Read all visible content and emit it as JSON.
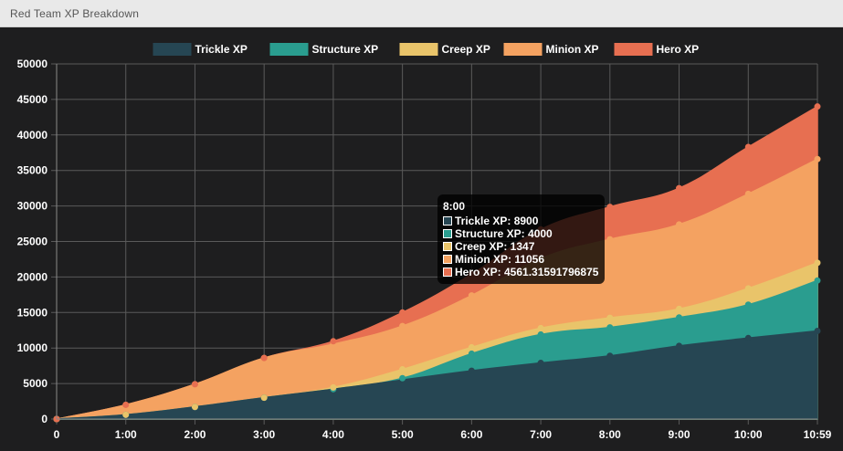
{
  "window": {
    "title": "Red Team XP Breakdown"
  },
  "chart_data": {
    "type": "area",
    "stacked": true,
    "x": [
      "0",
      "1:00",
      "2:00",
      "3:00",
      "4:00",
      "5:00",
      "6:00",
      "7:00",
      "8:00",
      "9:00",
      "10:00",
      "10:59"
    ],
    "ylim": [
      0,
      50000
    ],
    "yticks": [
      0,
      5000,
      10000,
      15000,
      20000,
      25000,
      30000,
      35000,
      40000,
      45000,
      50000
    ],
    "grid": true,
    "legend_position": "top",
    "series": [
      {
        "name": "Trickle XP",
        "color": "#264653",
        "values": [
          0,
          600,
          1700,
          3000,
          4200,
          5500,
          6800,
          7900,
          8900,
          10300,
          11400,
          12400
        ]
      },
      {
        "name": "Structure XP",
        "color": "#2a9d8f",
        "values": [
          0,
          0,
          0,
          0,
          0,
          250,
          2400,
          4000,
          4000,
          4000,
          4700,
          7100
        ]
      },
      {
        "name": "Creep XP",
        "color": "#e9c46a",
        "values": [
          0,
          0,
          0,
          0,
          250,
          1250,
          900,
          900,
          1347,
          1200,
          2300,
          2500
        ]
      },
      {
        "name": "Minion XP",
        "color": "#f4a261",
        "values": [
          0,
          1400,
          3200,
          5600,
          6100,
          6100,
          7300,
          9800,
          11056,
          11900,
          13300,
          14600
        ]
      },
      {
        "name": "Hero XP",
        "color": "#e76f51",
        "values": [
          0,
          0,
          0,
          0,
          400,
          1900,
          3000,
          4100,
          4561.31591796875,
          5100,
          6600,
          7400
        ]
      }
    ]
  },
  "tooltip": {
    "title": "8:00",
    "rows": [
      {
        "label": "Trickle XP: 8900"
      },
      {
        "label": "Structure XP: 4000"
      },
      {
        "label": "Creep XP: 1347"
      },
      {
        "label": "Minion XP: 11056"
      },
      {
        "label": "Hero XP: 4561.31591796875"
      }
    ]
  }
}
